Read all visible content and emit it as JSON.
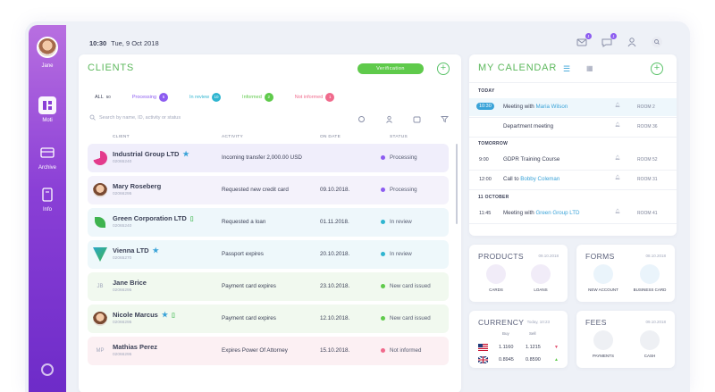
{
  "user": {
    "name": "Jane"
  },
  "nav": [
    {
      "label": "Moti"
    },
    {
      "label": "Archive"
    },
    {
      "label": "Info"
    }
  ],
  "topbar": {
    "time": "10:30",
    "date": "Tue, 9 Oct 2018",
    "badge_messages": "1",
    "badge_notifications": "1"
  },
  "clients": {
    "title": "CLIENTS",
    "verification_label": "Verification",
    "filters": [
      {
        "label": "ALL",
        "count": "50",
        "color": "#3a3f55"
      },
      {
        "label": "Processing",
        "count": "5",
        "color": "#8c5cf0"
      },
      {
        "label": "In review",
        "count": "10",
        "color": "#2fb5d0"
      },
      {
        "label": "Informed",
        "count": "2",
        "color": "#5fca4b"
      },
      {
        "label": "Not informed",
        "count": "1",
        "color": "#f06a8c"
      }
    ],
    "search_placeholder": "Search by name, ID, activity or status",
    "columns": {
      "client": "CLIENT",
      "activity": "ACTIVITY",
      "on_date": "ON DATE",
      "status": "STATUS"
    },
    "rows": [
      {
        "name": "Industrial Group LTD",
        "code": "02065240",
        "activity": "Incoming transfer 2,000.00 USD",
        "date": "",
        "status": "Processing",
        "status_color": "#8c5cf0",
        "row_bg": "#f0eefb",
        "logo": "g-logo",
        "star": true,
        "doc": false
      },
      {
        "name": "Mary Roseberg",
        "code": "02066295",
        "activity": "Requested new credit card",
        "date": "09.10.2018.",
        "status": "Processing",
        "status_color": "#8c5cf0",
        "row_bg": "#f4f2fb",
        "logo": "person",
        "star": false,
        "doc": false
      },
      {
        "name": "Green Corporation LTD",
        "code": "02065240",
        "activity": "Requested a loan",
        "date": "01.11.2018.",
        "status": "In review",
        "status_color": "#2fb5d0",
        "row_bg": "#eef7fb",
        "logo": "leaf",
        "star": false,
        "doc": true
      },
      {
        "name": "Vienna LTD",
        "code": "02065270",
        "activity": "Passport expires",
        "date": "20.10.2018.",
        "status": "In review",
        "status_color": "#2fb5d0",
        "row_bg": "#eef8fb",
        "logo": "v-logo",
        "star": true,
        "doc": false
      },
      {
        "name": "Jane Brice",
        "code": "02066295",
        "activity": "Payment card expires",
        "date": "23.10.2018.",
        "status": "New card issued",
        "status_color": "#5fca4b",
        "row_bg": "#f1f9ef",
        "logo": "JB",
        "star": false,
        "doc": false
      },
      {
        "name": "Nicole Marcus",
        "code": "02066295",
        "activity": "Payment card expires",
        "date": "12.10.2018.",
        "status": "New card issued",
        "status_color": "#5fca4b",
        "row_bg": "#f1f9ef",
        "logo": "person2",
        "star": true,
        "doc": true
      },
      {
        "name": "Mathias Perez",
        "code": "02066295",
        "activity": "Expires Power Of Attorney",
        "date": "15.10.2018.",
        "status": "Not informed",
        "status_color": "#f06a8c",
        "row_bg": "#fcf0f3",
        "logo": "MP",
        "star": false,
        "doc": false
      }
    ]
  },
  "calendar": {
    "title": "MY CALENDAR",
    "sections": [
      {
        "label": "TODAY"
      },
      {
        "label": "TOMORROW"
      },
      {
        "label": "11 OCTOBER"
      }
    ],
    "events": [
      {
        "time": "10:30",
        "desc": "Meeting with ",
        "highlight": "Maria Wilson",
        "room": "ROOM 2"
      },
      {
        "time": "",
        "desc": "Department meeting",
        "highlight": "",
        "room": "ROOM 36"
      },
      {
        "time": "9:00",
        "desc": "GDPR Training Course",
        "highlight": "",
        "room": "ROOM 52"
      },
      {
        "time": "12:00",
        "desc": "Call to ",
        "highlight": "Bobby Coleman",
        "room": "ROOM 31"
      },
      {
        "time": "11:45",
        "desc": "Meeting with ",
        "highlight": "Green Group LTD",
        "room": "ROOM 41"
      }
    ]
  },
  "products": {
    "title": "PRODUCTS",
    "date": "09.10.2018",
    "items": [
      "CARDS",
      "LOANS"
    ]
  },
  "forms": {
    "title": "FORMS",
    "date": "08.10.2018",
    "items": [
      "NEW ACCOUNT",
      "BUSINESS CARD"
    ]
  },
  "currency": {
    "title": "CURRENCY",
    "date": "Today, 10:23",
    "buy_label": "Buy",
    "sell_label": "Sell",
    "rows": [
      {
        "flag": "us",
        "buy": "1.1160",
        "sell": "1.1215",
        "trend": "down"
      },
      {
        "flag": "gb",
        "buy": "0.8945",
        "sell": "0.8590",
        "trend": "up"
      }
    ]
  },
  "fees": {
    "title": "FEES",
    "date": "09.10.2018",
    "items": [
      "PAYMENTS",
      "CASH"
    ]
  },
  "colors": {
    "accent_green": "#5cc36b",
    "accent_purple": "#8c5cf0",
    "accent_blue": "#3aa3d8"
  }
}
